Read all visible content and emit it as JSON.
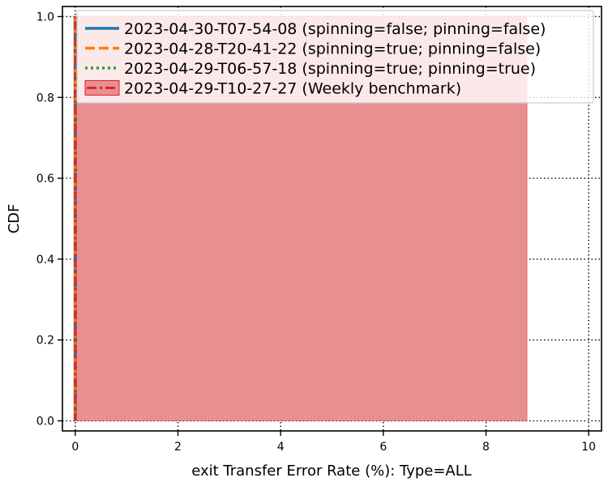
{
  "chart_data": {
    "type": "line",
    "title": "",
    "xlabel": "exit Transfer Error Rate (%): Type=ALL",
    "ylabel": "CDF",
    "xlim": [
      -0.25,
      10.25
    ],
    "ylim": [
      -0.025,
      1.025
    ],
    "xticks": [
      0,
      2,
      4,
      6,
      8,
      10
    ],
    "yticks": [
      0.0,
      0.2,
      0.4,
      0.6,
      0.8,
      1.0
    ],
    "xtick_labels": [
      "0",
      "2",
      "4",
      "6",
      "8",
      "10"
    ],
    "ytick_labels": [
      "0.0",
      "0.2",
      "0.4",
      "0.6",
      "0.8",
      "1.0"
    ],
    "grid": true,
    "legend_position": "top-right",
    "series": [
      {
        "name": "2023-04-30-T07-54-08 (spinning=false; pinning=false)",
        "color": "#1f77b4",
        "line_style": "solid",
        "x": [
          0,
          0
        ],
        "y": [
          0.0,
          1.0
        ]
      },
      {
        "name": "2023-04-28-T20-41-22 (spinning=true; pinning=false)",
        "color": "#ff7f0e",
        "line_style": "dashed",
        "x": [
          0,
          0
        ],
        "y": [
          0.0,
          1.0
        ]
      },
      {
        "name": "2023-04-29-T06-57-18 (spinning=true; pinning=true)",
        "color": "#2ca02c",
        "line_style": "dotted",
        "x": [
          0,
          0
        ],
        "y": [
          0.0,
          1.0
        ]
      }
    ],
    "benchmark": {
      "name": "2023-04-29-T10-27-27 (Weekly benchmark)",
      "line_color": "#d62728",
      "fill_color": "#e88f92",
      "line_style": "dashdot",
      "x": [
        0,
        0
      ],
      "y": [
        0.0,
        1.0
      ],
      "band_x": [
        0,
        8.8
      ],
      "band_y": [
        0.0,
        1.0
      ]
    }
  }
}
